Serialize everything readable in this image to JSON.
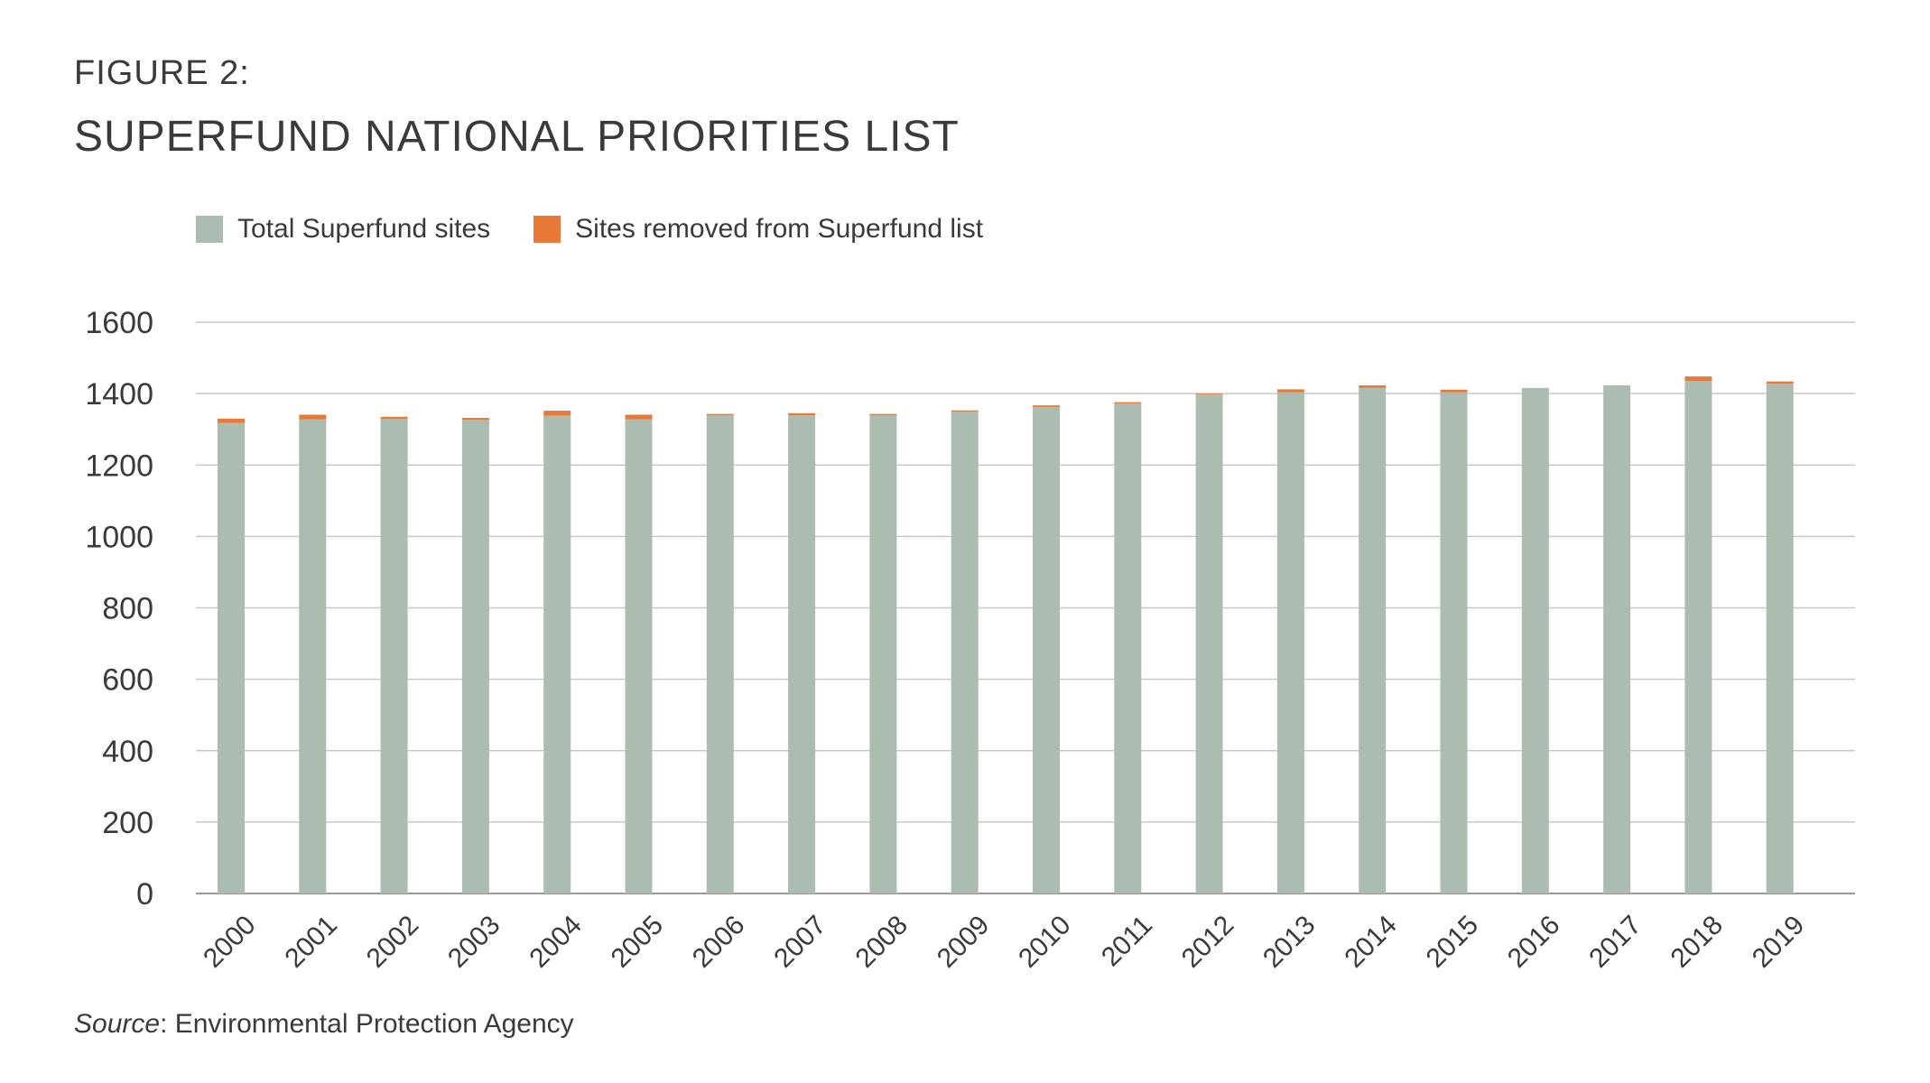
{
  "header": {
    "figure_label": "FIGURE 2:",
    "title": "SUPERFUND NATIONAL PRIORITIES LIST"
  },
  "legend": {
    "total_label": "Total Superfund sites",
    "removed_label": "Sites removed from Superfund list"
  },
  "source": {
    "prefix": "Source",
    "text": ": Environmental Protection Agency"
  },
  "colors": {
    "total": "#abbdb0",
    "removed": "#e87a38",
    "grid": "#c8c8c8",
    "axis": "#9a9a9a",
    "text": "#3a3a3a"
  },
  "chart_data": {
    "type": "bar",
    "stacked": true,
    "title": "SUPERFUND NATIONAL PRIORITIES LIST",
    "xlabel": "",
    "ylabel": "",
    "ylim": [
      0,
      1600
    ],
    "yticks": [
      0,
      200,
      400,
      600,
      800,
      1000,
      1200,
      1400,
      1600
    ],
    "grid": true,
    "legend_position": "top-left",
    "categories": [
      "2000",
      "2001",
      "2002",
      "2003",
      "2004",
      "2005",
      "2006",
      "2007",
      "2008",
      "2009",
      "2010",
      "2011",
      "2012",
      "2013",
      "2014",
      "2015",
      "2016",
      "2017",
      "2018",
      "2019"
    ],
    "series": [
      {
        "name": "Total Superfund sites",
        "color": "#abbdb0",
        "values": [
          1318,
          1328,
          1329,
          1327,
          1338,
          1328,
          1339,
          1339,
          1339,
          1349,
          1362,
          1372,
          1398,
          1404,
          1416,
          1404,
          1416,
          1423,
          1435,
          1428
        ]
      },
      {
        "name": "Sites removed from Superfund list",
        "color": "#e87a38",
        "values": [
          12,
          13,
          6,
          5,
          14,
          13,
          4,
          6,
          4,
          4,
          5,
          4,
          2,
          8,
          7,
          7,
          0,
          0,
          13,
          6
        ]
      }
    ]
  }
}
